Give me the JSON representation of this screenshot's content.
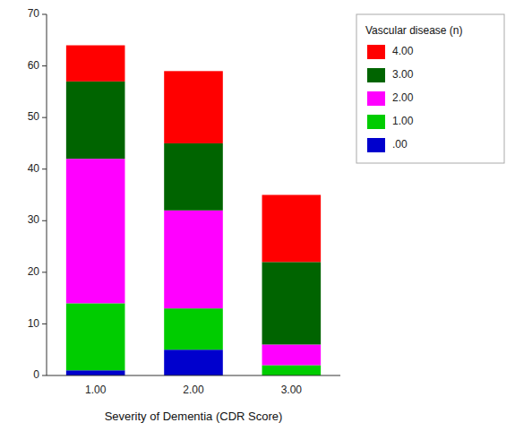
{
  "chart_data": {
    "type": "bar",
    "stacked": true,
    "categories": [
      "1.00",
      "2.00",
      "3.00"
    ],
    "series": [
      {
        "name": ".00",
        "color": "#0000cd",
        "values": [
          1,
          5,
          0
        ]
      },
      {
        "name": "1.00",
        "color": "#00cc00",
        "values": [
          13,
          8,
          2
        ]
      },
      {
        "name": "2.00",
        "color": "#ff00ff",
        "values": [
          28,
          19,
          4
        ]
      },
      {
        "name": "3.00",
        "color": "#006400",
        "values": [
          15,
          13,
          16
        ]
      },
      {
        "name": "4.00",
        "color": "#ff0000",
        "values": [
          7,
          14,
          13
        ]
      }
    ],
    "xlabel": "Severity of Dementia (CDR Score)",
    "legend_title": "Vascular disease (n)",
    "ylim": [
      0,
      70
    ],
    "yticks": [
      0,
      10,
      20,
      30,
      40,
      50,
      60,
      70
    ],
    "grid": false,
    "legend": "right"
  }
}
